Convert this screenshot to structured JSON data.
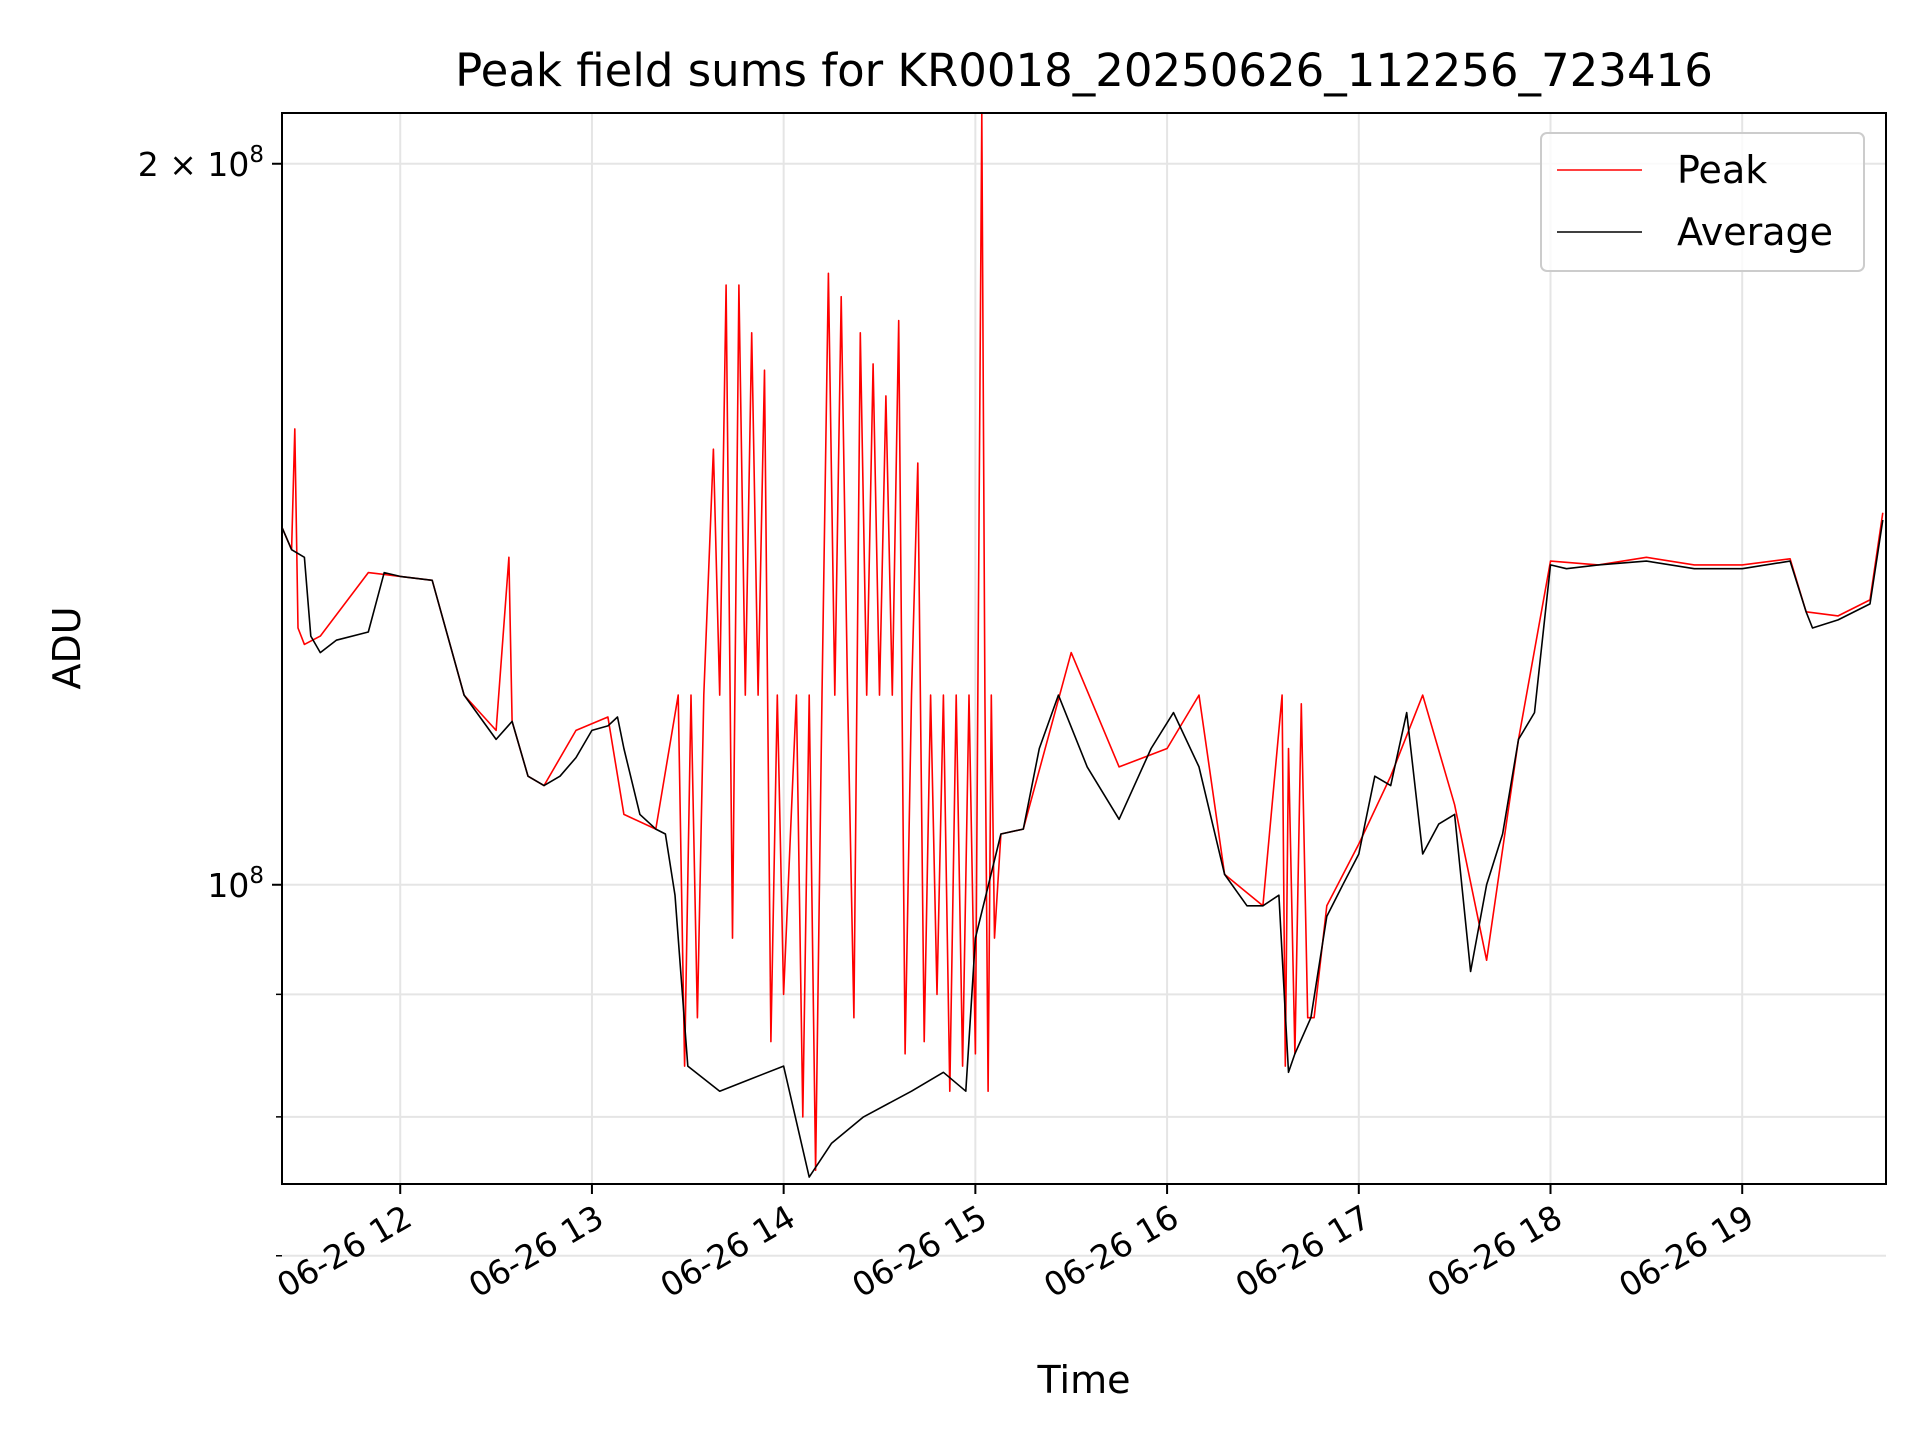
{
  "chart_data": {
    "type": "line",
    "title": "Peak field sums for KR0018_20250626_112256_723416",
    "xlabel": "Time",
    "ylabel": "ADU",
    "yscale": "log",
    "xlim": [
      "2025-06-26 11:23",
      "2025-06-26 19:45"
    ],
    "ylim": [
      75000000,
      210000000
    ],
    "x_ticks": [
      "06-26 12",
      "06-26 13",
      "06-26 14",
      "06-26 15",
      "06-26 16",
      "06-26 17",
      "06-26 18",
      "06-26 19"
    ],
    "y_ticks": [
      {
        "label_base": "10",
        "label_exp": "8",
        "value": 100000000
      },
      {
        "label_base": "2 × 10",
        "label_exp": "8",
        "value": 200000000
      }
    ],
    "grid": true,
    "legend": {
      "position": "top-right",
      "entries": [
        "Peak",
        "Average"
      ]
    },
    "colors": {
      "Peak": "#ff0000",
      "Average": "#000000"
    },
    "series": [
      {
        "name": "Average",
        "color": "#000000",
        "x": [
          "11:23",
          "11:26",
          "11:30",
          "11:32",
          "11:35",
          "11:40",
          "11:50",
          "11:55",
          "12:00",
          "12:10",
          "12:20",
          "12:30",
          "12:35",
          "12:40",
          "12:45",
          "12:50",
          "12:55",
          "13:00",
          "13:05",
          "13:08",
          "13:10",
          "13:15",
          "13:20",
          "13:23",
          "13:26",
          "13:30",
          "13:40",
          "13:50",
          "14:00",
          "14:08",
          "14:15",
          "14:25",
          "14:40",
          "14:50",
          "14:57",
          "15:00",
          "15:08",
          "15:15",
          "15:20",
          "15:26",
          "15:35",
          "15:45",
          "15:55",
          "16:02",
          "16:10",
          "16:18",
          "16:25",
          "16:30",
          "16:35",
          "16:38",
          "16:40",
          "16:45",
          "16:50",
          "16:55",
          "17:00",
          "17:05",
          "17:10",
          "17:15",
          "17:20",
          "17:25",
          "17:30",
          "17:35",
          "17:40",
          "17:45",
          "17:50",
          "17:55",
          "18:00",
          "18:05",
          "18:15",
          "18:30",
          "18:45",
          "19:00",
          "19:15",
          "19:20",
          "19:22",
          "19:30",
          "19:40",
          "19:44"
        ],
        "y": [
          141000000,
          138000000,
          137000000,
          127000000,
          125000000,
          126500000,
          127500000,
          135000000,
          134500000,
          134000000,
          120000000,
          115000000,
          117000000,
          111000000,
          110000000,
          111000000,
          113000000,
          116000000,
          116500000,
          117500000,
          114000000,
          107000000,
          105500000,
          105000000,
          99000000,
          84000000,
          82000000,
          83000000,
          84000000,
          75500000,
          78000000,
          80000000,
          82000000,
          83500000,
          82000000,
          95000000,
          105000000,
          105500000,
          114000000,
          120000000,
          112000000,
          106500000,
          114000000,
          118000000,
          112000000,
          101000000,
          98000000,
          98000000,
          99000000,
          83500000,
          85000000,
          88000000,
          97000000,
          100000000,
          103000000,
          111000000,
          110000000,
          118000000,
          103000000,
          106000000,
          107000000,
          92000000,
          100000000,
          105000000,
          115000000,
          118000000,
          136000000,
          135500000,
          136000000,
          136500000,
          135500000,
          135500000,
          136500000,
          130000000,
          128000000,
          129000000,
          131000000,
          142000000
        ]
      },
      {
        "name": "Peak",
        "color": "#ff0000",
        "x": [
          "11:23",
          "11:26",
          "11:27",
          "11:28",
          "11:30",
          "11:35",
          "11:50",
          "12:00",
          "12:10",
          "12:20",
          "12:30",
          "12:34",
          "12:35",
          "12:40",
          "12:45",
          "12:55",
          "13:05",
          "13:10",
          "13:20",
          "13:27",
          "13:29",
          "13:31",
          "13:33",
          "13:35",
          "13:38",
          "13:40",
          "13:42",
          "13:44",
          "13:46",
          "13:48",
          "13:50",
          "13:52",
          "13:54",
          "13:56",
          "13:58",
          "14:00",
          "14:04",
          "14:06",
          "14:08",
          "14:10",
          "14:12",
          "14:14",
          "14:16",
          "14:18",
          "14:20",
          "14:22",
          "14:24",
          "14:26",
          "14:28",
          "14:30",
          "14:32",
          "14:34",
          "14:36",
          "14:38",
          "14:40",
          "14:42",
          "14:44",
          "14:46",
          "14:48",
          "14:50",
          "14:52",
          "14:54",
          "14:56",
          "14:58",
          "15:00",
          "15:02",
          "15:03",
          "15:04",
          "15:05",
          "15:06",
          "15:08",
          "15:15",
          "15:30",
          "15:45",
          "16:00",
          "16:10",
          "16:18",
          "16:30",
          "16:36",
          "16:37",
          "16:38",
          "16:40",
          "16:42",
          "16:44",
          "16:46",
          "16:50",
          "17:00",
          "17:10",
          "17:20",
          "17:30",
          "17:40",
          "17:50",
          "18:00",
          "18:15",
          "18:30",
          "18:45",
          "19:00",
          "19:15",
          "19:20",
          "19:30",
          "19:40",
          "19:44"
        ],
        "y": [
          141000000,
          138000000,
          155000000,
          128000000,
          126000000,
          127000000,
          135000000,
          134500000,
          134000000,
          120000000,
          116000000,
          137000000,
          117000000,
          111000000,
          110000000,
          116000000,
          117500000,
          107000000,
          105500000,
          120000000,
          84000000,
          120000000,
          88000000,
          120000000,
          152000000,
          120000000,
          178000000,
          95000000,
          178000000,
          120000000,
          170000000,
          120000000,
          164000000,
          86000000,
          120000000,
          90000000,
          120000000,
          80000000,
          120000000,
          76000000,
          120000000,
          180000000,
          120000000,
          176000000,
          120000000,
          88000000,
          170000000,
          120000000,
          165000000,
          120000000,
          160000000,
          120000000,
          172000000,
          85000000,
          120000000,
          150000000,
          86000000,
          120000000,
          90000000,
          120000000,
          82000000,
          120000000,
          84000000,
          120000000,
          85000000,
          210000000,
          120000000,
          82000000,
          120000000,
          95000000,
          105000000,
          105500000,
          125000000,
          112000000,
          114000000,
          120000000,
          101000000,
          98000000,
          120000000,
          84000000,
          114000000,
          85000000,
          119000000,
          88000000,
          88000000,
          98000000,
          104000000,
          111000000,
          120000000,
          108000000,
          93000000,
          115000000,
          136500000,
          136000000,
          137000000,
          136000000,
          136000000,
          136800000,
          130000000,
          129500000,
          131500000,
          143000000
        ]
      }
    ]
  }
}
